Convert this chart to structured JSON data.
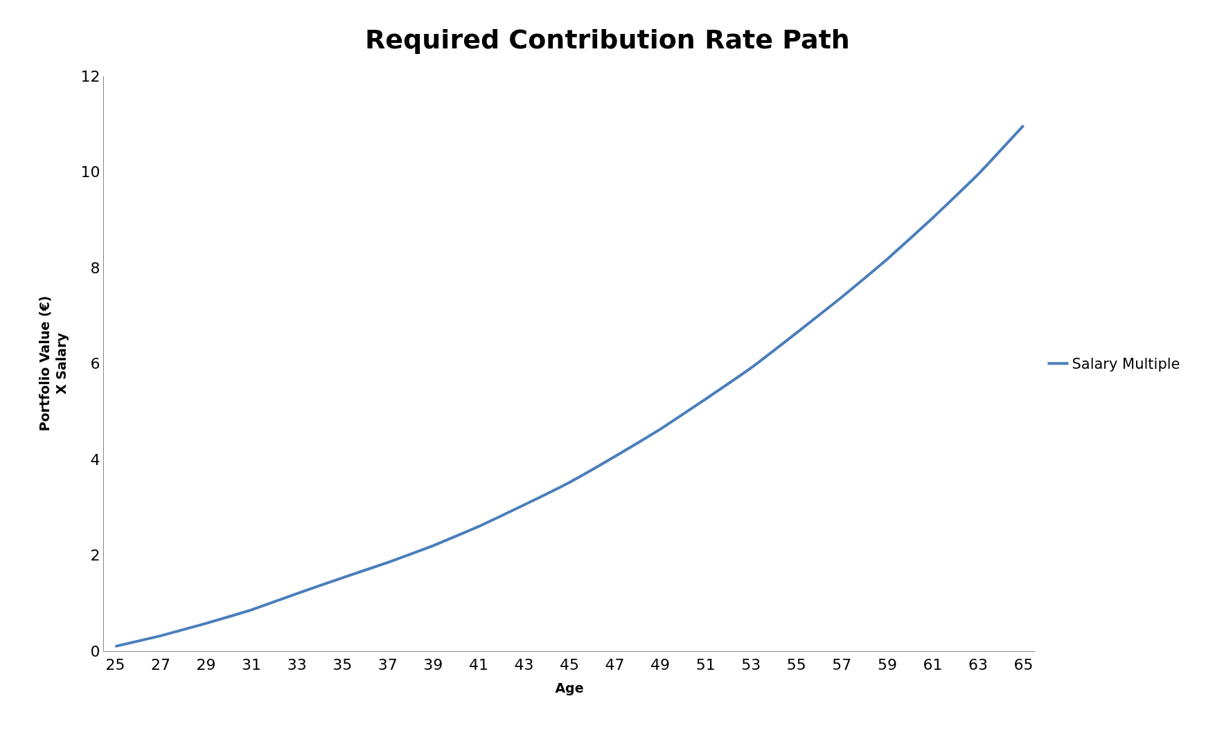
{
  "chart_data": {
    "type": "line",
    "title": "Required Contribution Rate Path",
    "xlabel": "Age",
    "ylabel": "Portfolio Value (€)\nX Salary",
    "x": [
      25,
      27,
      29,
      31,
      33,
      35,
      37,
      39,
      41,
      43,
      45,
      47,
      49,
      51,
      53,
      55,
      57,
      59,
      61,
      63,
      65
    ],
    "series": [
      {
        "name": "Salary Multiple",
        "color": "#4a7ebb",
        "values": [
          0.1,
          0.32,
          0.58,
          0.86,
          1.2,
          1.53,
          1.85,
          2.2,
          2.6,
          3.05,
          3.52,
          4.06,
          4.63,
          5.26,
          5.91,
          6.64,
          7.39,
          8.18,
          9.04,
          9.95,
          10.97
        ]
      }
    ],
    "xlim": [
      24.5,
      65.5
    ],
    "xticks": [
      25,
      27,
      29,
      31,
      33,
      35,
      37,
      39,
      41,
      43,
      45,
      47,
      49,
      51,
      53,
      55,
      57,
      59,
      61,
      63,
      65
    ],
    "ylim": [
      0,
      12
    ],
    "yticks": [
      0,
      2,
      4,
      6,
      8,
      10,
      12
    ],
    "legend": "right",
    "marker": "none",
    "line_style": "solid"
  }
}
